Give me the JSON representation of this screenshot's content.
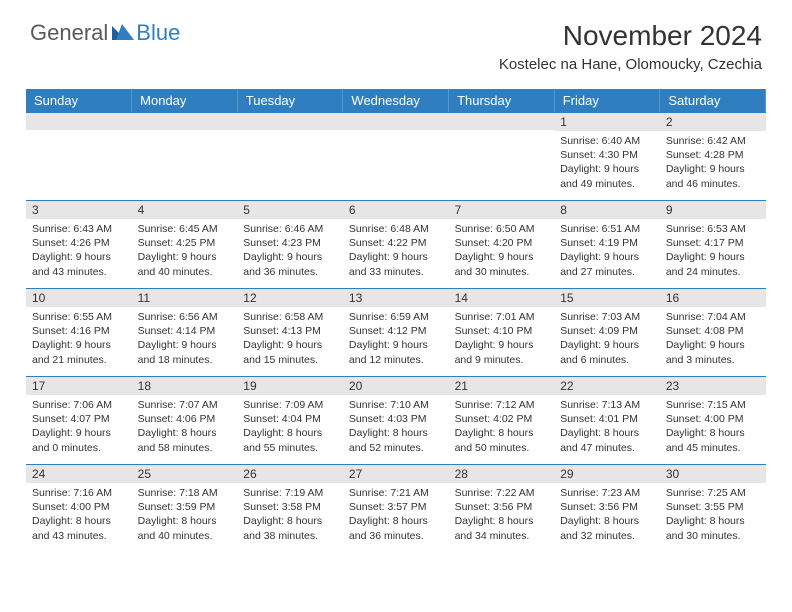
{
  "brand": {
    "part1": "General",
    "part2": "Blue"
  },
  "title": "November 2024",
  "location": "Kostelec na Hane, Olomoucky, Czechia",
  "colors": {
    "header_bg": "#2f7fc0",
    "header_text": "#ffffff",
    "daynum_bg": "#e6e6e6",
    "border_accent": "#2f7fc0",
    "body_text": "#333333",
    "logo_gray": "#5a5a5a",
    "logo_blue": "#2f7fc0",
    "page_bg": "#ffffff"
  },
  "typography": {
    "month_title_pt": 21,
    "location_pt": 11,
    "dayheader_pt": 10,
    "daynum_pt": 9,
    "body_pt": 8,
    "logo_pt": 16
  },
  "day_headers": [
    "Sunday",
    "Monday",
    "Tuesday",
    "Wednesday",
    "Thursday",
    "Friday",
    "Saturday"
  ],
  "weeks": [
    [
      {
        "n": "",
        "sunrise": "",
        "sunset": "",
        "daylight": ""
      },
      {
        "n": "",
        "sunrise": "",
        "sunset": "",
        "daylight": ""
      },
      {
        "n": "",
        "sunrise": "",
        "sunset": "",
        "daylight": ""
      },
      {
        "n": "",
        "sunrise": "",
        "sunset": "",
        "daylight": ""
      },
      {
        "n": "",
        "sunrise": "",
        "sunset": "",
        "daylight": ""
      },
      {
        "n": "1",
        "sunrise": "Sunrise: 6:40 AM",
        "sunset": "Sunset: 4:30 PM",
        "daylight": "Daylight: 9 hours and 49 minutes."
      },
      {
        "n": "2",
        "sunrise": "Sunrise: 6:42 AM",
        "sunset": "Sunset: 4:28 PM",
        "daylight": "Daylight: 9 hours and 46 minutes."
      }
    ],
    [
      {
        "n": "3",
        "sunrise": "Sunrise: 6:43 AM",
        "sunset": "Sunset: 4:26 PM",
        "daylight": "Daylight: 9 hours and 43 minutes."
      },
      {
        "n": "4",
        "sunrise": "Sunrise: 6:45 AM",
        "sunset": "Sunset: 4:25 PM",
        "daylight": "Daylight: 9 hours and 40 minutes."
      },
      {
        "n": "5",
        "sunrise": "Sunrise: 6:46 AM",
        "sunset": "Sunset: 4:23 PM",
        "daylight": "Daylight: 9 hours and 36 minutes."
      },
      {
        "n": "6",
        "sunrise": "Sunrise: 6:48 AM",
        "sunset": "Sunset: 4:22 PM",
        "daylight": "Daylight: 9 hours and 33 minutes."
      },
      {
        "n": "7",
        "sunrise": "Sunrise: 6:50 AM",
        "sunset": "Sunset: 4:20 PM",
        "daylight": "Daylight: 9 hours and 30 minutes."
      },
      {
        "n": "8",
        "sunrise": "Sunrise: 6:51 AM",
        "sunset": "Sunset: 4:19 PM",
        "daylight": "Daylight: 9 hours and 27 minutes."
      },
      {
        "n": "9",
        "sunrise": "Sunrise: 6:53 AM",
        "sunset": "Sunset: 4:17 PM",
        "daylight": "Daylight: 9 hours and 24 minutes."
      }
    ],
    [
      {
        "n": "10",
        "sunrise": "Sunrise: 6:55 AM",
        "sunset": "Sunset: 4:16 PM",
        "daylight": "Daylight: 9 hours and 21 minutes."
      },
      {
        "n": "11",
        "sunrise": "Sunrise: 6:56 AM",
        "sunset": "Sunset: 4:14 PM",
        "daylight": "Daylight: 9 hours and 18 minutes."
      },
      {
        "n": "12",
        "sunrise": "Sunrise: 6:58 AM",
        "sunset": "Sunset: 4:13 PM",
        "daylight": "Daylight: 9 hours and 15 minutes."
      },
      {
        "n": "13",
        "sunrise": "Sunrise: 6:59 AM",
        "sunset": "Sunset: 4:12 PM",
        "daylight": "Daylight: 9 hours and 12 minutes."
      },
      {
        "n": "14",
        "sunrise": "Sunrise: 7:01 AM",
        "sunset": "Sunset: 4:10 PM",
        "daylight": "Daylight: 9 hours and 9 minutes."
      },
      {
        "n": "15",
        "sunrise": "Sunrise: 7:03 AM",
        "sunset": "Sunset: 4:09 PM",
        "daylight": "Daylight: 9 hours and 6 minutes."
      },
      {
        "n": "16",
        "sunrise": "Sunrise: 7:04 AM",
        "sunset": "Sunset: 4:08 PM",
        "daylight": "Daylight: 9 hours and 3 minutes."
      }
    ],
    [
      {
        "n": "17",
        "sunrise": "Sunrise: 7:06 AM",
        "sunset": "Sunset: 4:07 PM",
        "daylight": "Daylight: 9 hours and 0 minutes."
      },
      {
        "n": "18",
        "sunrise": "Sunrise: 7:07 AM",
        "sunset": "Sunset: 4:06 PM",
        "daylight": "Daylight: 8 hours and 58 minutes."
      },
      {
        "n": "19",
        "sunrise": "Sunrise: 7:09 AM",
        "sunset": "Sunset: 4:04 PM",
        "daylight": "Daylight: 8 hours and 55 minutes."
      },
      {
        "n": "20",
        "sunrise": "Sunrise: 7:10 AM",
        "sunset": "Sunset: 4:03 PM",
        "daylight": "Daylight: 8 hours and 52 minutes."
      },
      {
        "n": "21",
        "sunrise": "Sunrise: 7:12 AM",
        "sunset": "Sunset: 4:02 PM",
        "daylight": "Daylight: 8 hours and 50 minutes."
      },
      {
        "n": "22",
        "sunrise": "Sunrise: 7:13 AM",
        "sunset": "Sunset: 4:01 PM",
        "daylight": "Daylight: 8 hours and 47 minutes."
      },
      {
        "n": "23",
        "sunrise": "Sunrise: 7:15 AM",
        "sunset": "Sunset: 4:00 PM",
        "daylight": "Daylight: 8 hours and 45 minutes."
      }
    ],
    [
      {
        "n": "24",
        "sunrise": "Sunrise: 7:16 AM",
        "sunset": "Sunset: 4:00 PM",
        "daylight": "Daylight: 8 hours and 43 minutes."
      },
      {
        "n": "25",
        "sunrise": "Sunrise: 7:18 AM",
        "sunset": "Sunset: 3:59 PM",
        "daylight": "Daylight: 8 hours and 40 minutes."
      },
      {
        "n": "26",
        "sunrise": "Sunrise: 7:19 AM",
        "sunset": "Sunset: 3:58 PM",
        "daylight": "Daylight: 8 hours and 38 minutes."
      },
      {
        "n": "27",
        "sunrise": "Sunrise: 7:21 AM",
        "sunset": "Sunset: 3:57 PM",
        "daylight": "Daylight: 8 hours and 36 minutes."
      },
      {
        "n": "28",
        "sunrise": "Sunrise: 7:22 AM",
        "sunset": "Sunset: 3:56 PM",
        "daylight": "Daylight: 8 hours and 34 minutes."
      },
      {
        "n": "29",
        "sunrise": "Sunrise: 7:23 AM",
        "sunset": "Sunset: 3:56 PM",
        "daylight": "Daylight: 8 hours and 32 minutes."
      },
      {
        "n": "30",
        "sunrise": "Sunrise: 7:25 AM",
        "sunset": "Sunset: 3:55 PM",
        "daylight": "Daylight: 8 hours and 30 minutes."
      }
    ]
  ]
}
